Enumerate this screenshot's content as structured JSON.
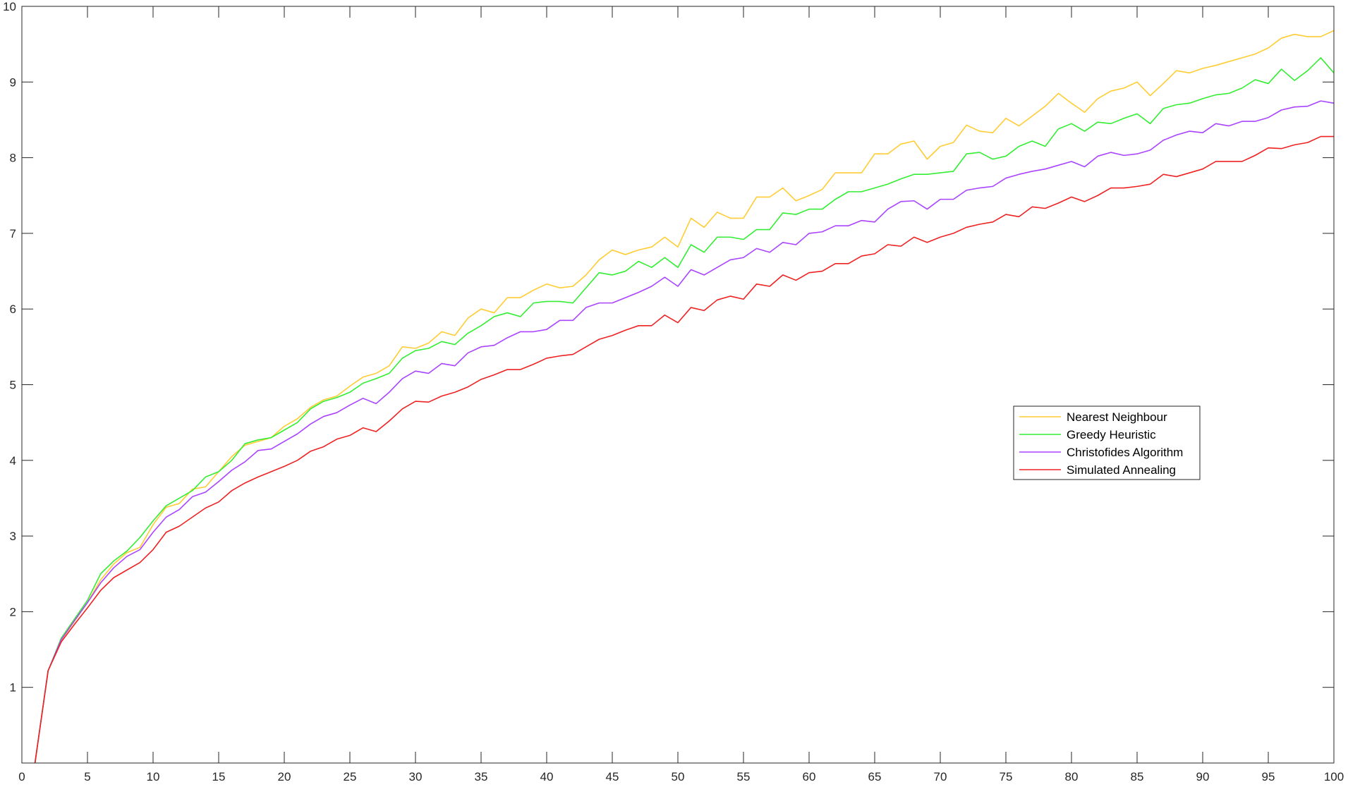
{
  "chart_data": {
    "type": "line",
    "title": "",
    "xlabel": "",
    "ylabel": "",
    "xlim": [
      0,
      100
    ],
    "ylim": [
      0,
      10
    ],
    "x_ticks": [
      0,
      5,
      10,
      15,
      20,
      25,
      30,
      35,
      40,
      45,
      50,
      55,
      60,
      65,
      70,
      75,
      80,
      85,
      90,
      95,
      100
    ],
    "y_ticks": [
      1,
      2,
      3,
      4,
      5,
      6,
      7,
      8,
      9,
      10
    ],
    "grid": false,
    "legend_position": "middle-right",
    "x": [
      1,
      2,
      3,
      4,
      5,
      6,
      7,
      8,
      9,
      10,
      11,
      12,
      13,
      14,
      15,
      16,
      17,
      18,
      19,
      20,
      21,
      22,
      23,
      24,
      25,
      26,
      27,
      28,
      29,
      30,
      31,
      32,
      33,
      34,
      35,
      36,
      37,
      38,
      39,
      40,
      41,
      42,
      43,
      44,
      45,
      46,
      47,
      48,
      49,
      50,
      51,
      52,
      53,
      54,
      55,
      56,
      57,
      58,
      59,
      60,
      61,
      62,
      63,
      64,
      65,
      66,
      67,
      68,
      69,
      70,
      71,
      72,
      73,
      74,
      75,
      76,
      77,
      78,
      79,
      80,
      81,
      82,
      83,
      84,
      85,
      86,
      87,
      88,
      89,
      90,
      91,
      92,
      93,
      94,
      95,
      96,
      97,
      98,
      99,
      100
    ],
    "series": [
      {
        "name": "Nearest Neighbour",
        "color": "#ffcc33",
        "values": [
          0,
          1.22,
          1.62,
          1.87,
          2.12,
          2.42,
          2.63,
          2.78,
          2.85,
          3.15,
          3.38,
          3.43,
          3.62,
          3.65,
          3.85,
          4.05,
          4.2,
          4.25,
          4.3,
          4.45,
          4.55,
          4.7,
          4.8,
          4.85,
          4.98,
          5.1,
          5.15,
          5.25,
          5.5,
          5.48,
          5.55,
          5.7,
          5.65,
          5.88,
          6.0,
          5.95,
          6.15,
          6.15,
          6.25,
          6.33,
          6.28,
          6.3,
          6.45,
          6.65,
          6.78,
          6.72,
          6.78,
          6.82,
          6.95,
          6.82,
          7.2,
          7.08,
          7.28,
          7.2,
          7.2,
          7.48,
          7.48,
          7.6,
          7.43,
          7.5,
          7.58,
          7.8,
          7.8,
          7.8,
          8.05,
          8.05,
          8.18,
          8.22,
          7.98,
          8.15,
          8.2,
          8.43,
          8.35,
          8.33,
          8.52,
          8.42,
          8.55,
          8.68,
          8.85,
          8.72,
          8.6,
          8.78,
          8.88,
          8.92,
          9.0,
          8.82,
          8.98,
          9.15,
          9.12,
          9.18,
          9.22,
          9.27,
          9.32,
          9.37,
          9.45,
          9.58,
          9.63,
          9.6,
          9.6,
          9.68
        ]
      },
      {
        "name": "Greedy Heuristic",
        "color": "#33ee33",
        "values": [
          0,
          1.22,
          1.65,
          1.9,
          2.15,
          2.5,
          2.67,
          2.8,
          2.98,
          3.2,
          3.4,
          3.5,
          3.6,
          3.78,
          3.85,
          4.0,
          4.22,
          4.27,
          4.3,
          4.4,
          4.5,
          4.68,
          4.78,
          4.83,
          4.9,
          5.02,
          5.08,
          5.15,
          5.35,
          5.45,
          5.48,
          5.57,
          5.53,
          5.68,
          5.78,
          5.9,
          5.95,
          5.9,
          6.08,
          6.1,
          6.1,
          6.08,
          6.28,
          6.48,
          6.45,
          6.5,
          6.63,
          6.55,
          6.68,
          6.55,
          6.85,
          6.75,
          6.95,
          6.95,
          6.92,
          7.05,
          7.05,
          7.27,
          7.25,
          7.32,
          7.32,
          7.45,
          7.55,
          7.55,
          7.6,
          7.65,
          7.72,
          7.78,
          7.78,
          7.8,
          7.82,
          8.05,
          8.07,
          7.98,
          8.02,
          8.15,
          8.22,
          8.15,
          8.38,
          8.45,
          8.35,
          8.47,
          8.45,
          8.52,
          8.58,
          8.45,
          8.65,
          8.7,
          8.72,
          8.78,
          8.83,
          8.85,
          8.92,
          9.03,
          8.98,
          9.17,
          9.02,
          9.15,
          9.32,
          9.12
        ]
      },
      {
        "name": "Christofides Algorithm",
        "color": "#aa44ff",
        "values": [
          0,
          1.22,
          1.63,
          1.88,
          2.12,
          2.38,
          2.58,
          2.73,
          2.82,
          3.05,
          3.25,
          3.35,
          3.52,
          3.58,
          3.72,
          3.87,
          3.98,
          4.13,
          4.15,
          4.25,
          4.35,
          4.48,
          4.58,
          4.63,
          4.73,
          4.82,
          4.75,
          4.9,
          5.08,
          5.18,
          5.15,
          5.28,
          5.25,
          5.42,
          5.5,
          5.52,
          5.62,
          5.7,
          5.7,
          5.73,
          5.85,
          5.85,
          6.02,
          6.08,
          6.08,
          6.15,
          6.22,
          6.3,
          6.42,
          6.3,
          6.52,
          6.45,
          6.55,
          6.65,
          6.68,
          6.8,
          6.75,
          6.88,
          6.85,
          7.0,
          7.02,
          7.1,
          7.1,
          7.17,
          7.15,
          7.32,
          7.42,
          7.43,
          7.32,
          7.45,
          7.45,
          7.57,
          7.6,
          7.62,
          7.73,
          7.78,
          7.82,
          7.85,
          7.9,
          7.95,
          7.88,
          8.02,
          8.07,
          8.03,
          8.05,
          8.1,
          8.23,
          8.3,
          8.35,
          8.33,
          8.45,
          8.42,
          8.48,
          8.48,
          8.53,
          8.63,
          8.67,
          8.68,
          8.75,
          8.72
        ]
      },
      {
        "name": "Simulated Annealing",
        "color": "#ee2222",
        "values": [
          0,
          1.22,
          1.6,
          1.83,
          2.05,
          2.28,
          2.45,
          2.55,
          2.65,
          2.82,
          3.05,
          3.13,
          3.25,
          3.37,
          3.45,
          3.6,
          3.7,
          3.78,
          3.85,
          3.92,
          4.0,
          4.12,
          4.18,
          4.28,
          4.33,
          4.43,
          4.38,
          4.52,
          4.68,
          4.78,
          4.77,
          4.85,
          4.9,
          4.97,
          5.07,
          5.13,
          5.2,
          5.2,
          5.27,
          5.35,
          5.38,
          5.4,
          5.5,
          5.6,
          5.65,
          5.72,
          5.78,
          5.78,
          5.92,
          5.82,
          6.02,
          5.98,
          6.12,
          6.17,
          6.13,
          6.33,
          6.3,
          6.45,
          6.38,
          6.48,
          6.5,
          6.6,
          6.6,
          6.7,
          6.73,
          6.85,
          6.83,
          6.95,
          6.88,
          6.95,
          7.0,
          7.08,
          7.12,
          7.15,
          7.25,
          7.22,
          7.35,
          7.33,
          7.4,
          7.48,
          7.42,
          7.5,
          7.6,
          7.6,
          7.62,
          7.65,
          7.78,
          7.75,
          7.8,
          7.85,
          7.95,
          7.95,
          7.95,
          8.03,
          8.13,
          8.12,
          8.17,
          8.2,
          8.28,
          8.28
        ]
      }
    ]
  }
}
